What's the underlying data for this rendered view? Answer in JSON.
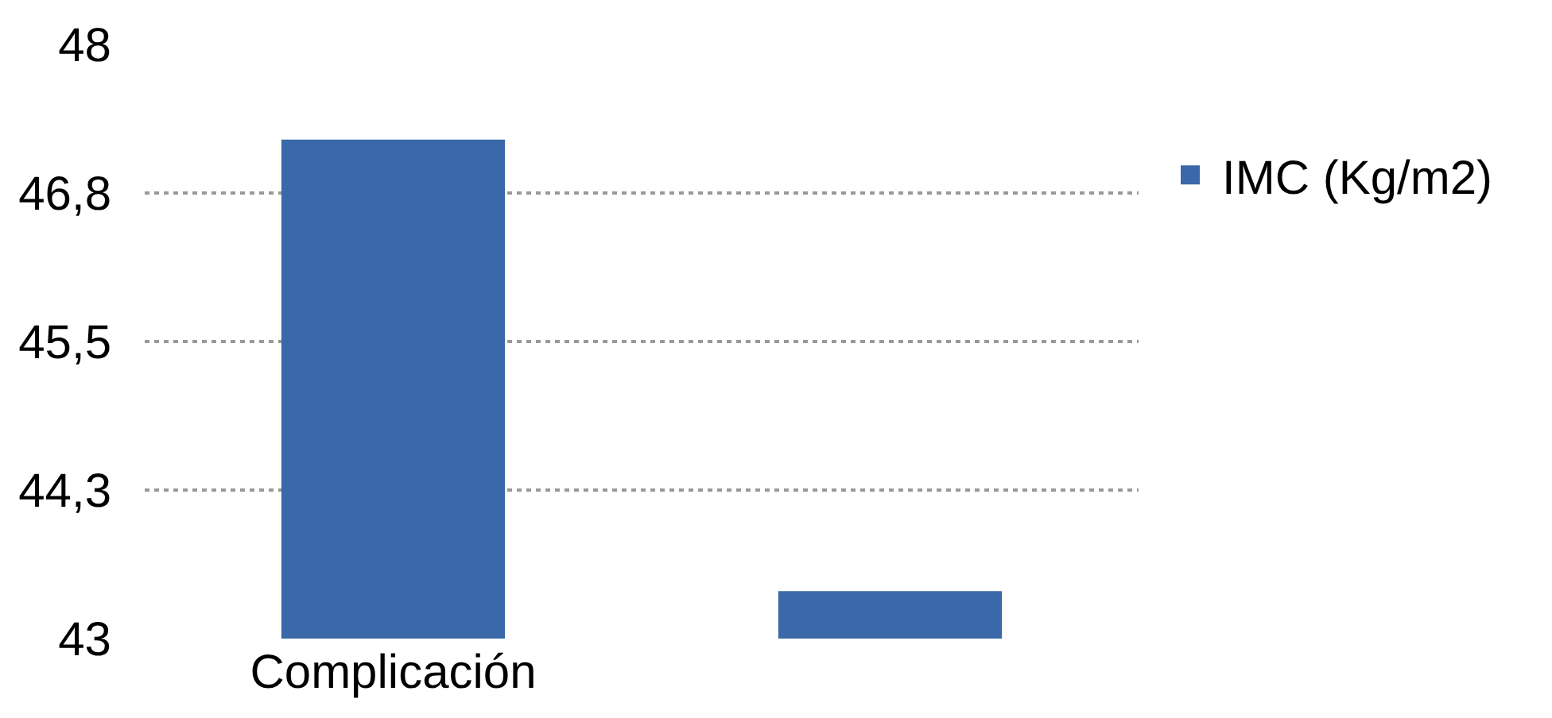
{
  "chart_data": {
    "type": "bar",
    "categories": [
      "Complicación",
      null
    ],
    "series": [
      {
        "name": "IMC (Kg/m2)",
        "color": "#3a68a8",
        "values": [
          47.2,
          43.4
        ]
      }
    ],
    "ylim": [
      43,
      48
    ],
    "yticks": [
      43,
      {
        "value": 44.25,
        "label": "44,3"
      },
      {
        "value": 45.5,
        "label": "45,5"
      },
      {
        "value": 46.75,
        "label": "46,8"
      },
      48
    ],
    "grid": "y",
    "legend": "top right"
  }
}
